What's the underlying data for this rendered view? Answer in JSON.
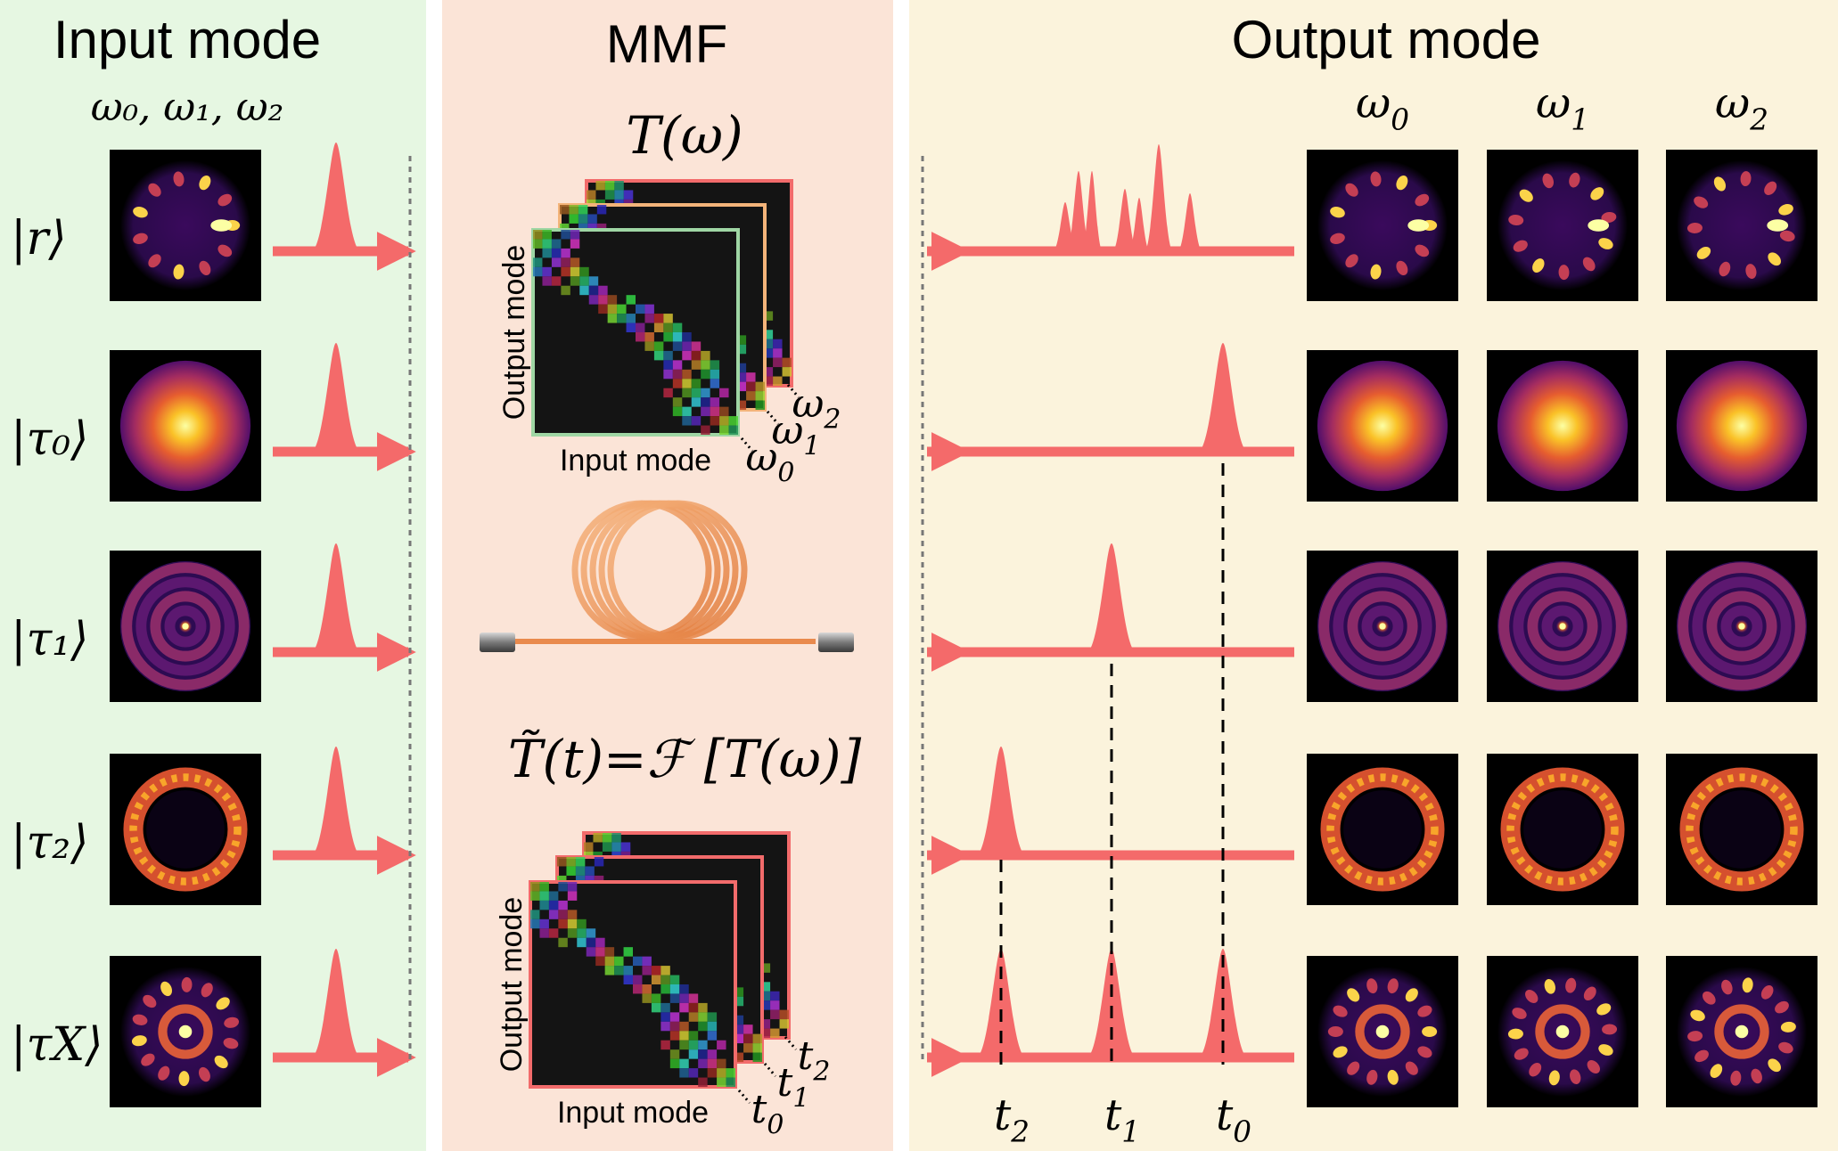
{
  "colors": {
    "input_bg": "#e6f7e2",
    "mmf_bg": "#fbe4d7",
    "output_bg": "#fbf3dc",
    "pulse": "#f46a6a",
    "dash": "#000000"
  },
  "panels": {
    "input": {
      "title": "Input mode",
      "freq_label": "ω₀, ω₁, ω₂"
    },
    "mmf": {
      "title": "MMF",
      "transfer_label": "T(ω)",
      "fourier_label": "T̃(t)=ℱ [T(ω)]"
    },
    "output": {
      "title": "Output mode"
    }
  },
  "input_states": [
    {
      "label": "|r⟩",
      "pattern": "speckle"
    },
    {
      "label": "|τ₀⟩",
      "pattern": "gaussian"
    },
    {
      "label": "|τ₁⟩",
      "pattern": "rings"
    },
    {
      "label": "|τ₂⟩",
      "pattern": "donut"
    },
    {
      "label": "|τX⟩",
      "pattern": "complex"
    }
  ],
  "matrix_top": {
    "axis_output": "Output mode",
    "axis_input": "Input mode",
    "layers": [
      "ω0",
      "ω1",
      "ω2"
    ],
    "layer_colors": [
      "#9fd6a4",
      "#f3b47a",
      "#f26b6b"
    ]
  },
  "matrix_bottom": {
    "axis_output": "Output mode",
    "axis_input": "Input mode",
    "layers": [
      "t0",
      "t1",
      "t2"
    ],
    "layer_colors": [
      "#f26b6b",
      "#f26b6b",
      "#f26b6b"
    ]
  },
  "output_columns": [
    "ω0",
    "ω1",
    "ω2"
  ],
  "time_labels": [
    "t2",
    "t1",
    "t0"
  ],
  "output_rows": [
    {
      "peaks": "speckle"
    },
    {
      "peaks": [
        "t0"
      ]
    },
    {
      "peaks": [
        "t1"
      ]
    },
    {
      "peaks": [
        "t2"
      ]
    },
    {
      "peaks": [
        "t2",
        "t1",
        "t0"
      ]
    }
  ]
}
